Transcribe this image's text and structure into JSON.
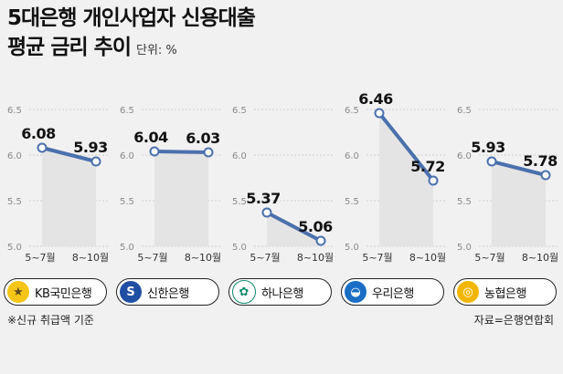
{
  "title": {
    "line1": "5대은행 개인사업자 신용대출",
    "line2": "평균 금리 추이",
    "unit": "단위: %"
  },
  "chart_data": {
    "type": "line",
    "categories": [
      "5~7월",
      "8~10월"
    ],
    "ylim": [
      5.0,
      6.5
    ],
    "yticks": [
      "6.5",
      "6.0",
      "5.5",
      "5.0"
    ],
    "series": [
      {
        "name": "KB국민은행",
        "values": [
          6.08,
          5.93
        ],
        "labels": [
          "6.08",
          "5.93"
        ]
      },
      {
        "name": "신한은행",
        "values": [
          6.04,
          6.03
        ],
        "labels": [
          "6.04",
          "6.03"
        ]
      },
      {
        "name": "하나은행",
        "values": [
          5.37,
          5.06
        ],
        "labels": [
          "5.37",
          "5.06"
        ]
      },
      {
        "name": "우리은행",
        "values": [
          6.46,
          5.72
        ],
        "labels": [
          "6.46",
          "5.72"
        ]
      },
      {
        "name": "농협은행",
        "values": [
          5.93,
          5.78
        ],
        "labels": [
          "5.93",
          "5.78"
        ]
      }
    ],
    "line_color": "#4a70ad",
    "grid": true
  },
  "banks": [
    {
      "name": "KB국민은행",
      "logo": "★",
      "logo_bg": "#f5c518",
      "logo_fg": "#5b4a1f",
      "icon": "kb-star-icon"
    },
    {
      "name": "신한은행",
      "logo": "S",
      "logo_bg": "#1f4fa3",
      "logo_fg": "#ffffff",
      "icon": "shinhan-s-icon"
    },
    {
      "name": "하나은행",
      "logo": "✿",
      "logo_bg": "#ffffff",
      "logo_fg": "#0f8a6b",
      "icon": "hana-flower-icon"
    },
    {
      "name": "우리은행",
      "logo": "◒",
      "logo_bg": "#1a6fc4",
      "logo_fg": "#ffffff",
      "icon": "woori-sun-icon"
    },
    {
      "name": "농협은행",
      "logo": "◎",
      "logo_bg": "#f2b705",
      "logo_fg": "#ffffff",
      "icon": "nh-ring-icon"
    }
  ],
  "footnote": "※신규 취급액 기준",
  "source": "자료=은행연합회"
}
